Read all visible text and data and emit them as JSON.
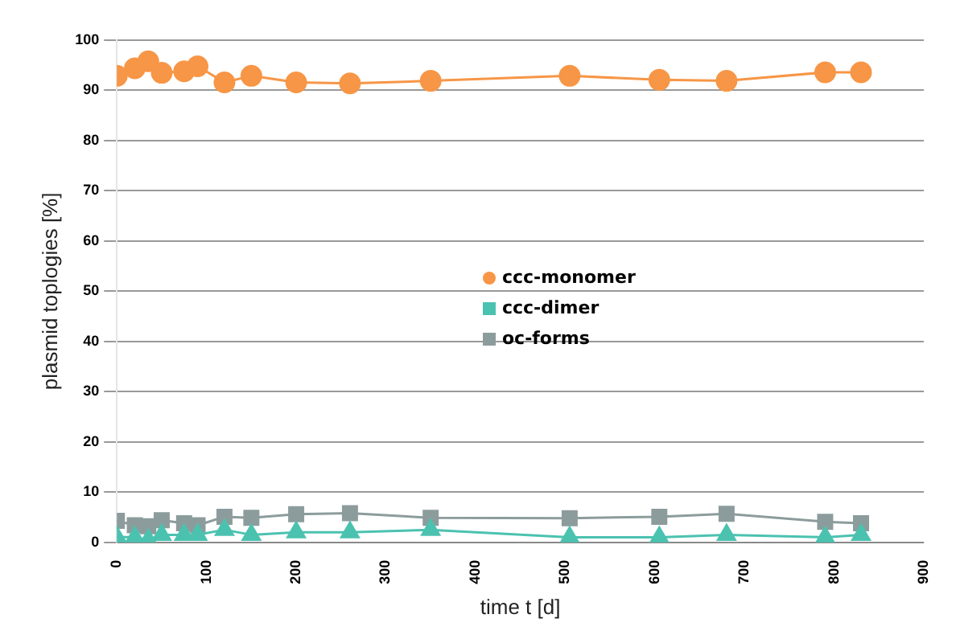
{
  "chart_data": {
    "type": "line",
    "xlabel": "time t [d]",
    "ylabel": "plasmid toplogies [%]",
    "xlim": [
      0,
      900
    ],
    "xticks": [
      0,
      100,
      200,
      300,
      400,
      500,
      600,
      700,
      800,
      900
    ],
    "ylim": [
      0,
      100
    ],
    "yticks": [
      0,
      10,
      20,
      30,
      40,
      50,
      60,
      70,
      80,
      90,
      100
    ],
    "grid": "y",
    "legend": "right",
    "line_style": "solid",
    "x": [
      0,
      20,
      35,
      50,
      75,
      90,
      120,
      150,
      200,
      260,
      350,
      505,
      605,
      680,
      790,
      830
    ],
    "series": [
      {
        "name": "ccc-monomer",
        "color": "#f79646",
        "marker": "circle",
        "values": [
          92.9,
          94.4,
          95.8,
          93.5,
          93.8,
          94.8,
          91.6,
          92.9,
          91.6,
          91.4,
          91.9,
          92.9,
          92.1,
          91.9,
          93.6,
          93.6
        ]
      },
      {
        "name": "ccc-dimer",
        "color": "#4bc2b0",
        "marker": "triangle",
        "values": [
          1.1,
          1,
          0.5,
          1.5,
          1.5,
          1.5,
          2.5,
          1.5,
          2,
          2,
          2.5,
          1,
          1,
          1.5,
          1,
          1.5
        ]
      },
      {
        "name": "oc-forms",
        "color": "#8c9c9c",
        "marker": "square",
        "values": [
          4.3,
          3.4,
          3.2,
          4.4,
          3.8,
          3.4,
          5.1,
          4.9,
          5.6,
          5.8,
          4.9,
          4.8,
          5.1,
          5.7,
          4.1,
          3.8
        ]
      }
    ]
  }
}
